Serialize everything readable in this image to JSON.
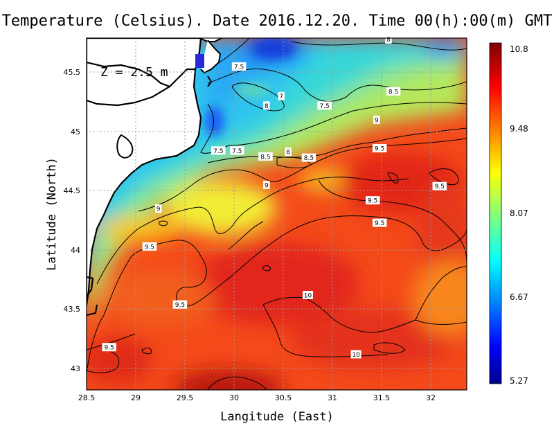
{
  "title": "Temperature (Celsius). Date 2016.12.20. Time 00(h):00(m) GMT",
  "depth_label": "Z = 2.5 m",
  "xlabel": "Langitude (East)",
  "ylabel": "Latitude (North)",
  "x_ticks": [
    "28.5",
    "29",
    "29.5",
    "30",
    "30.5",
    "31",
    "31.5",
    "32"
  ],
  "y_ticks": [
    "43",
    "43.5",
    "44",
    "44.5",
    "45",
    "45.5"
  ],
  "colorbar": {
    "min": 5.27,
    "max": 10.8,
    "tick_labels": [
      "10.8",
      "9.48",
      "8.07",
      "6.67",
      "5.27"
    ],
    "colormap": "jet"
  },
  "colors": {
    "land": "#ffffff",
    "coast": "#000000",
    "contour": "#000000",
    "grid": "#9a9a9a"
  },
  "contour_labels": [
    {
      "text": "8",
      "lon": 31.57,
      "lat": 45.78
    },
    {
      "text": "7.5",
      "lon": 30.05,
      "lat": 45.55
    },
    {
      "text": "8.5",
      "lon": 31.62,
      "lat": 45.34
    },
    {
      "text": "7",
      "lon": 30.48,
      "lat": 45.3
    },
    {
      "text": "8",
      "lon": 30.33,
      "lat": 45.22
    },
    {
      "text": "7.5",
      "lon": 30.92,
      "lat": 45.22
    },
    {
      "text": "9",
      "lon": 31.45,
      "lat": 45.1
    },
    {
      "text": "7.5",
      "lon": 29.84,
      "lat": 44.84
    },
    {
      "text": "7.5",
      "lon": 30.03,
      "lat": 44.84
    },
    {
      "text": "8.5",
      "lon": 30.32,
      "lat": 44.79
    },
    {
      "text": "8",
      "lon": 30.55,
      "lat": 44.83
    },
    {
      "text": "8.5",
      "lon": 30.76,
      "lat": 44.78
    },
    {
      "text": "9.5",
      "lon": 31.48,
      "lat": 44.86
    },
    {
      "text": "9",
      "lon": 30.33,
      "lat": 44.55
    },
    {
      "text": "9.5",
      "lon": 32.09,
      "lat": 44.54
    },
    {
      "text": "9.5",
      "lon": 31.41,
      "lat": 44.42
    },
    {
      "text": "9",
      "lon": 29.23,
      "lat": 44.35
    },
    {
      "text": "9.5",
      "lon": 31.48,
      "lat": 44.23
    },
    {
      "text": "9.5",
      "lon": 29.14,
      "lat": 44.03
    },
    {
      "text": "10",
      "lon": 30.75,
      "lat": 43.62
    },
    {
      "text": "9.5",
      "lon": 29.45,
      "lat": 43.54
    },
    {
      "text": "9.5",
      "lon": 28.73,
      "lat": 43.18
    },
    {
      "text": "10",
      "lon": 31.24,
      "lat": 43.12
    }
  ]
}
